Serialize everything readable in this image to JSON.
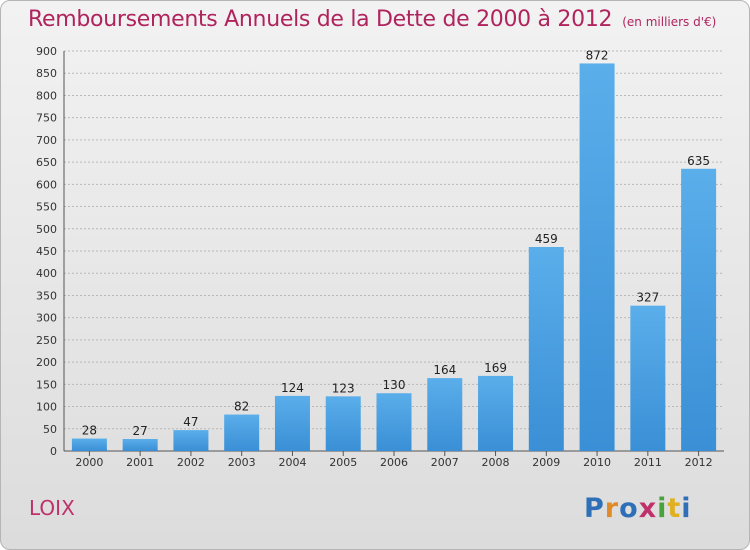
{
  "title": "Remboursements Annuels de la Dette de 2000 à 2012",
  "unit": "(en milliers d'€)",
  "commune": "LOIX",
  "logo": {
    "text": "Proxiti",
    "letter_colors": [
      "#2f6fb8",
      "#e08a2a",
      "#2f6fb8",
      "#c0306b",
      "#4aa33a",
      "#e0b020",
      "#2f6fb8"
    ]
  },
  "colors": {
    "bar": "#3a8fd6",
    "bar_light": "#5aaeea",
    "title": "#b0245e",
    "grid": "#b8b8b8"
  },
  "chart_data": {
    "type": "bar",
    "title": "Remboursements Annuels de la Dette de 2000 à 2012",
    "categories": [
      "2000",
      "2001",
      "2002",
      "2003",
      "2004",
      "2005",
      "2006",
      "2007",
      "2008",
      "2009",
      "2010",
      "2011",
      "2012"
    ],
    "values": [
      28,
      27,
      47,
      82,
      124,
      123,
      130,
      164,
      169,
      459,
      872,
      327,
      635
    ],
    "ylim": [
      0,
      900
    ],
    "yticks": [
      0,
      50,
      100,
      150,
      200,
      250,
      300,
      350,
      400,
      450,
      500,
      550,
      600,
      650,
      700,
      750,
      800,
      850,
      900
    ],
    "grid": true,
    "data_labels": true
  }
}
